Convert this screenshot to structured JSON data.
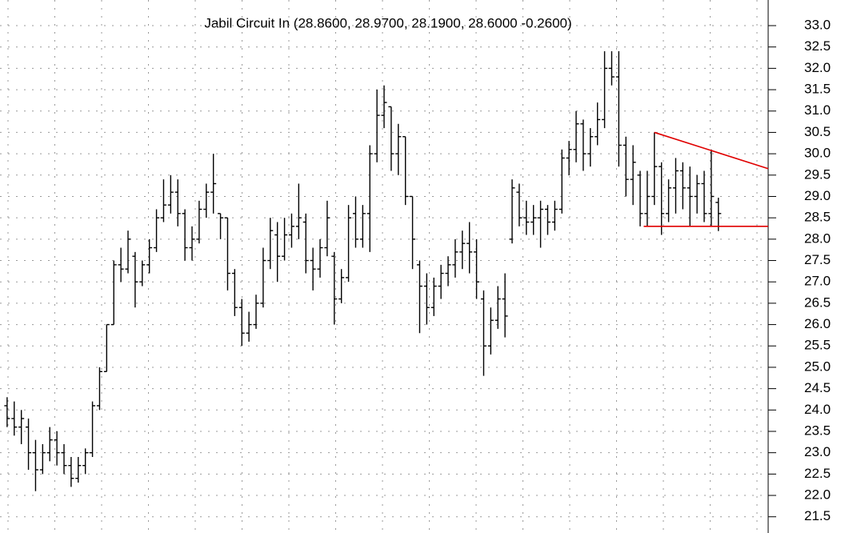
{
  "chart_data": {
    "type": "ohlc",
    "title": "Jabil Circuit In (28.8600, 28.9700, 28.1900, 28.6000 -0.2600)",
    "color": "#000000",
    "xlim": [
      -1,
      107
    ],
    "ylim": [
      21.12,
      33.6
    ],
    "grid": true,
    "yticks": [
      {
        "value": 21.5,
        "label": "21.5"
      },
      {
        "value": 22,
        "label": "22.0"
      },
      {
        "value": 22.5,
        "label": "22.5"
      },
      {
        "value": 23,
        "label": "23.0"
      },
      {
        "value": 23.5,
        "label": "23.5"
      },
      {
        "value": 24,
        "label": "24.0"
      },
      {
        "value": 24.5,
        "label": "24.5"
      },
      {
        "value": 25,
        "label": "25.0"
      },
      {
        "value": 25.5,
        "label": "25.5"
      },
      {
        "value": 26,
        "label": "26.0"
      },
      {
        "value": 26.5,
        "label": "26.5"
      },
      {
        "value": 27,
        "label": "27.0"
      },
      {
        "value": 27.5,
        "label": "27.5"
      },
      {
        "value": 28,
        "label": "28.0"
      },
      {
        "value": 28.5,
        "label": "28.5"
      },
      {
        "value": 29,
        "label": "29.0"
      },
      {
        "value": 29.5,
        "label": "29.5"
      },
      {
        "value": 30,
        "label": "30.0"
      },
      {
        "value": 30.5,
        "label": "30.5"
      },
      {
        "value": 31,
        "label": "31.0"
      },
      {
        "value": 31.5,
        "label": "31.5"
      },
      {
        "value": 32,
        "label": "32.0"
      },
      {
        "value": 32.5,
        "label": "32.5"
      },
      {
        "value": 33,
        "label": "33.0"
      }
    ],
    "ohlc": [
      [
        24.1,
        24.3,
        23.6,
        23.8
      ],
      [
        23.8,
        24.2,
        23.4,
        23.6
      ],
      [
        23.6,
        24.0,
        23.2,
        23.8
      ],
      [
        23.6,
        23.8,
        22.6,
        23.0
      ],
      [
        23.0,
        23.3,
        22.1,
        22.6
      ],
      [
        22.6,
        23.2,
        22.5,
        23.0
      ],
      [
        23.0,
        23.6,
        22.8,
        23.3
      ],
      [
        23.3,
        23.5,
        22.7,
        23.0
      ],
      [
        23.0,
        23.2,
        22.5,
        22.7
      ],
      [
        22.7,
        22.9,
        22.2,
        22.4
      ],
      [
        22.4,
        22.9,
        22.3,
        22.7
      ],
      [
        22.7,
        23.1,
        22.5,
        23.0
      ],
      [
        23.0,
        24.2,
        22.9,
        24.1
      ],
      [
        24.1,
        25.0,
        24.0,
        24.9
      ],
      [
        24.9,
        26.0,
        24.9,
        26.0
      ],
      [
        26.0,
        27.5,
        26.0,
        27.4
      ],
      [
        27.4,
        27.8,
        27.0,
        27.3
      ],
      [
        27.3,
        28.2,
        27.2,
        28.0
      ],
      [
        27.6,
        27.7,
        26.4,
        27.0
      ],
      [
        27.0,
        27.5,
        26.9,
        27.4
      ],
      [
        27.4,
        28.0,
        27.2,
        27.8
      ],
      [
        27.8,
        28.7,
        27.7,
        28.5
      ],
      [
        28.5,
        29.4,
        28.4,
        28.8
      ],
      [
        28.8,
        29.5,
        28.6,
        29.1
      ],
      [
        29.1,
        29.4,
        28.3,
        28.6
      ],
      [
        28.6,
        28.7,
        27.5,
        27.8
      ],
      [
        27.8,
        28.3,
        27.5,
        28.0
      ],
      [
        28.0,
        28.9,
        27.9,
        28.7
      ],
      [
        28.7,
        29.3,
        28.5,
        29.1
      ],
      [
        29.1,
        30.0,
        28.6,
        29.3
      ],
      [
        28.6,
        28.6,
        28.0,
        28.5
      ],
      [
        28.5,
        28.5,
        26.8,
        27.2
      ],
      [
        27.2,
        27.3,
        26.2,
        26.4
      ],
      [
        26.4,
        26.6,
        25.5,
        25.8
      ],
      [
        25.8,
        26.3,
        25.6,
        26.0
      ],
      [
        26.0,
        26.7,
        25.9,
        26.5
      ],
      [
        26.5,
        27.8,
        26.4,
        27.5
      ],
      [
        27.5,
        28.5,
        27.3,
        28.2
      ],
      [
        28.1,
        28.4,
        27.0,
        27.6
      ],
      [
        27.6,
        28.5,
        27.5,
        28.1
      ],
      [
        28.1,
        28.6,
        27.8,
        28.3
      ],
      [
        28.3,
        29.3,
        28.0,
        28.5
      ],
      [
        28.4,
        28.6,
        27.2,
        27.5
      ],
      [
        27.5,
        27.8,
        26.8,
        27.3
      ],
      [
        27.3,
        28.0,
        27.1,
        27.8
      ],
      [
        27.8,
        28.9,
        27.6,
        28.5
      ],
      [
        27.6,
        27.7,
        26.0,
        26.6
      ],
      [
        26.6,
        27.3,
        26.5,
        27.1
      ],
      [
        27.1,
        28.8,
        27.0,
        28.5
      ],
      [
        28.6,
        29.0,
        27.8,
        28.0
      ],
      [
        28.0,
        28.8,
        27.8,
        28.6
      ],
      [
        28.6,
        30.2,
        27.7,
        30.0
      ],
      [
        30.0,
        31.5,
        29.8,
        30.9
      ],
      [
        30.9,
        31.6,
        30.6,
        31.2
      ],
      [
        31.1,
        31.1,
        29.6,
        30.0
      ],
      [
        30.0,
        30.7,
        29.5,
        30.4
      ],
      [
        30.4,
        30.4,
        28.8,
        29.0
      ],
      [
        29.0,
        29.0,
        27.3,
        28.0
      ],
      [
        27.4,
        27.5,
        25.8,
        26.9
      ],
      [
        26.9,
        27.2,
        26.0,
        26.4
      ],
      [
        26.4,
        27.1,
        26.2,
        26.9
      ],
      [
        26.9,
        27.4,
        26.6,
        27.2
      ],
      [
        27.2,
        27.6,
        26.9,
        27.4
      ],
      [
        27.4,
        28.0,
        27.1,
        27.7
      ],
      [
        27.7,
        28.2,
        27.3,
        27.9
      ],
      [
        27.9,
        28.4,
        27.2,
        27.7
      ],
      [
        27.7,
        28.0,
        26.6,
        27.0
      ],
      [
        26.6,
        26.8,
        24.8,
        25.5
      ],
      [
        25.5,
        26.4,
        25.3,
        26.1
      ],
      [
        26.1,
        26.9,
        25.9,
        26.6
      ],
      [
        26.6,
        27.2,
        25.7,
        26.2
      ],
      [
        28.0,
        29.4,
        27.9,
        29.2
      ],
      [
        29.1,
        29.3,
        28.3,
        28.5
      ],
      [
        28.5,
        28.9,
        28.1,
        28.4
      ],
      [
        28.4,
        28.8,
        28.1,
        28.5
      ],
      [
        28.5,
        28.9,
        27.8,
        28.7
      ],
      [
        28.7,
        28.8,
        28.1,
        28.4
      ],
      [
        28.4,
        28.9,
        28.2,
        28.7
      ],
      [
        28.7,
        30.1,
        28.6,
        29.9
      ],
      [
        29.9,
        30.3,
        29.5,
        30.1
      ],
      [
        30.1,
        31.0,
        29.8,
        30.7
      ],
      [
        30.7,
        30.8,
        29.6,
        30.0
      ],
      [
        30.0,
        30.6,
        29.7,
        30.4
      ],
      [
        30.4,
        31.2,
        30.2,
        30.8
      ],
      [
        30.8,
        32.4,
        30.6,
        32.0
      ],
      [
        32.0,
        32.4,
        31.6,
        31.8
      ],
      [
        31.8,
        32.4,
        29.7,
        30.2
      ],
      [
        30.2,
        30.4,
        29.0,
        29.4
      ],
      [
        29.4,
        30.2,
        28.8,
        29.8
      ],
      [
        29.5,
        29.6,
        28.3,
        28.6
      ],
      [
        28.6,
        29.6,
        28.3,
        29.0
      ],
      [
        29.0,
        30.5,
        28.8,
        29.7
      ],
      [
        29.7,
        29.8,
        28.1,
        28.6
      ],
      [
        28.6,
        29.4,
        28.4,
        29.2
      ],
      [
        29.2,
        29.9,
        28.6,
        29.6
      ],
      [
        29.6,
        29.8,
        28.7,
        29.2
      ],
      [
        29.2,
        29.7,
        28.3,
        29.0
      ],
      [
        29.0,
        29.5,
        28.6,
        29.3
      ],
      [
        29.3,
        29.6,
        28.4,
        28.6
      ],
      [
        28.6,
        30.1,
        28.3,
        29.0
      ],
      [
        28.86,
        28.97,
        28.19,
        28.6
      ]
    ],
    "trendlines": [
      {
        "color": "#e00000",
        "start": [
          91,
          30.5
        ],
        "end": [
          107,
          29.65
        ]
      },
      {
        "color": "#e00000",
        "start": [
          89.5,
          28.3
        ],
        "end": [
          107,
          28.3
        ]
      }
    ]
  }
}
